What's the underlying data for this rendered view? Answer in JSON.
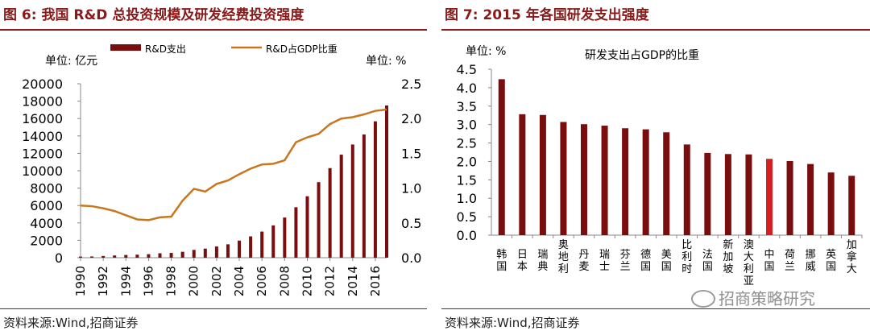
{
  "colors": {
    "title": "#8a1a1a",
    "bar": "#7a0e0e",
    "line": "#c8771f",
    "highlight": "#d42020",
    "axis": "#888888"
  },
  "left": {
    "title": "图 6:  我国 R&D 总投资规模及研发经费投资强度",
    "source": "资料来源:Wind,招商证券",
    "chart_data": {
      "type": "bar",
      "left_unit": "单位: 亿元",
      "right_unit": "单位: %",
      "x_ticks": [
        "1990",
        "1992",
        "1994",
        "1996",
        "1998",
        "2000",
        "2002",
        "2004",
        "2006",
        "2008",
        "2010",
        "2012",
        "2014",
        "2016"
      ],
      "y_ticks": [
        "20000",
        "18000",
        "16000",
        "14000",
        "12000",
        "10000",
        "8000",
        "6000",
        "4000",
        "2000",
        "0"
      ],
      "y2_ticks": [
        "2.5",
        "2.0",
        "1.5",
        "1.0",
        "0.5",
        "0.0"
      ],
      "ylim": [
        0,
        20000
      ],
      "y2lim": [
        0,
        2.5
      ],
      "years": [
        1990,
        1991,
        1992,
        1993,
        1994,
        1995,
        1996,
        1997,
        1998,
        1999,
        2000,
        2001,
        2002,
        2003,
        2004,
        2005,
        2006,
        2007,
        2008,
        2009,
        2010,
        2011,
        2012,
        2013,
        2014,
        2015,
        2016,
        2017
      ],
      "series": [
        {
          "name": "R&D支出",
          "kind": "bar",
          "values": [
            125,
            143,
            198,
            256,
            310,
            349,
            405,
            509,
            551,
            679,
            896,
            1042,
            1288,
            1540,
            1966,
            2450,
            3003,
            3710,
            4616,
            5802,
            7063,
            8687,
            10298,
            11847,
            13016,
            14170,
            15677,
            17500
          ]
        },
        {
          "name": "R&D占GDP比重",
          "kind": "line",
          "values": [
            0.75,
            0.74,
            0.71,
            0.67,
            0.61,
            0.55,
            0.54,
            0.58,
            0.59,
            0.82,
            0.99,
            0.95,
            1.06,
            1.11,
            1.2,
            1.28,
            1.34,
            1.35,
            1.4,
            1.66,
            1.73,
            1.78,
            1.92,
            2.0,
            2.02,
            2.06,
            2.11,
            2.13
          ]
        }
      ]
    }
  },
  "right": {
    "title": "图 7:  2015 年各国研发支出强度",
    "source": "资料来源:Wind,招商证券",
    "chart_data": {
      "type": "bar",
      "unit": "单位: %",
      "series_title": "研发支出占GDP的比重",
      "y_ticks": [
        "4.5",
        "4.0",
        "3.5",
        "3.0",
        "2.5",
        "2.0",
        "1.5",
        "1.0",
        "0.5",
        "0.0"
      ],
      "ylim": [
        0,
        4.5
      ],
      "categories": [
        "韩国",
        "日本",
        "瑞典",
        "奥地利",
        "丹麦",
        "瑞士",
        "芬兰",
        "德国",
        "美国",
        "比利时",
        "法国",
        "新加坡",
        "澳大利亚",
        "中国",
        "荷兰",
        "挪威",
        "英国",
        "加拿大"
      ],
      "values": [
        4.23,
        3.28,
        3.26,
        3.07,
        3.01,
        2.97,
        2.9,
        2.87,
        2.79,
        2.46,
        2.23,
        2.2,
        2.19,
        2.07,
        2.01,
        1.93,
        1.7,
        1.61
      ],
      "highlight": "中国"
    },
    "watermark": "招商策略研究"
  }
}
